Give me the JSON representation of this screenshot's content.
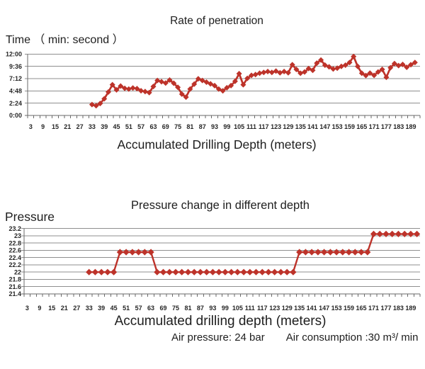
{
  "colors": {
    "series": "#bd332a",
    "grid": "#8f8f8f",
    "axis": "#6a6a6a",
    "text": "#1e1e1e",
    "tick_text": "#262626"
  },
  "footnote": {
    "air_pressure": "Air pressure: 24 bar",
    "air_consumption": "Air consumption :30 m³/ min"
  },
  "chart_data": [
    {
      "type": "line",
      "title": "Rate of penetration",
      "ylabel": "Time （ min: second ）",
      "xlabel": "Accumulated Drilling Depth (meters)",
      "marker": "diamond",
      "legend": "none",
      "grid": "horizontal",
      "x_tick_labels": [
        3,
        9,
        15,
        21,
        27,
        33,
        39,
        45,
        51,
        57,
        63,
        69,
        75,
        81,
        87,
        93,
        99,
        105,
        111,
        117,
        123,
        129,
        135,
        141,
        147,
        153,
        159,
        165,
        171,
        177,
        183,
        189
      ],
      "x_axis_range": [
        3,
        192
      ],
      "ylim_seconds": [
        0,
        720
      ],
      "y_ticks_seconds": [
        0,
        144,
        288,
        432,
        576,
        720
      ],
      "y_tick_labels": [
        "0:00",
        "2:24",
        "4:48",
        "7:12",
        "9:36",
        "12:00"
      ],
      "x_meters": [
        33,
        35,
        37,
        39,
        41,
        43,
        45,
        47,
        49,
        51,
        53,
        55,
        57,
        59,
        61,
        63,
        65,
        67,
        69,
        71,
        73,
        75,
        77,
        79,
        81,
        83,
        85,
        87,
        89,
        91,
        93,
        95,
        97,
        99,
        101,
        103,
        105,
        107,
        109,
        111,
        113,
        115,
        117,
        119,
        121,
        123,
        125,
        127,
        129,
        131,
        133,
        135,
        137,
        139,
        141,
        143,
        145,
        147,
        149,
        151,
        153,
        155,
        157,
        159,
        161,
        163,
        165,
        167,
        169,
        171,
        173,
        175,
        177,
        179,
        181,
        183,
        185,
        187,
        189,
        191
      ],
      "values_seconds": [
        128,
        115,
        140,
        195,
        275,
        360,
        300,
        345,
        318,
        310,
        322,
        315,
        290,
        280,
        267,
        340,
        410,
        395,
        380,
        415,
        378,
        330,
        250,
        215,
        310,
        368,
        430,
        410,
        390,
        370,
        350,
        310,
        289,
        325,
        350,
        400,
        490,
        360,
        435,
        470,
        480,
        495,
        505,
        515,
        505,
        520,
        500,
        515,
        500,
        595,
        540,
        495,
        510,
        550,
        530,
        614,
        650,
        590,
        570,
        545,
        555,
        575,
        590,
        620,
        692,
        575,
        495,
        468,
        497,
        470,
        510,
        540,
        448,
        560,
        608,
        585,
        598,
        565,
        595,
        620
      ]
    },
    {
      "type": "line",
      "title": "Pressure change in different depth",
      "ylabel": "Pressure",
      "xlabel": "Accumulated drilling depth (meters)",
      "marker": "diamond",
      "legend": "none",
      "grid": "horizontal",
      "x_tick_labels": [
        3,
        9,
        15,
        21,
        27,
        33,
        39,
        45,
        51,
        57,
        63,
        69,
        75,
        81,
        87,
        93,
        99,
        105,
        111,
        117,
        123,
        129,
        135,
        141,
        147,
        153,
        159,
        165,
        171,
        177,
        183,
        189
      ],
      "x_axis_range": [
        3,
        192
      ],
      "ylim": [
        21.4,
        23.2
      ],
      "y_ticks": [
        21.4,
        21.6,
        21.8,
        22,
        22.2,
        22.4,
        22.6,
        22.8,
        23,
        23.2
      ],
      "y_tick_labels": [
        "21.4",
        "21.6",
        "21.8",
        "22",
        "22.2",
        "22.4",
        "22.6",
        "22.8",
        "23",
        "23.2"
      ],
      "x_meters": [
        33,
        36,
        39,
        42,
        45,
        48,
        51,
        54,
        57,
        60,
        63,
        66,
        69,
        72,
        75,
        78,
        81,
        84,
        87,
        90,
        93,
        96,
        99,
        102,
        105,
        108,
        111,
        114,
        117,
        120,
        123,
        126,
        129,
        132,
        135,
        138,
        141,
        144,
        147,
        150,
        153,
        156,
        159,
        162,
        165,
        168,
        171,
        174,
        177,
        180,
        183,
        186,
        189,
        192
      ],
      "values": [
        22,
        22,
        22,
        22,
        22,
        22.55,
        22.55,
        22.55,
        22.55,
        22.55,
        22.55,
        22,
        22,
        22,
        22,
        22,
        22,
        22,
        22,
        22,
        22,
        22,
        22,
        22,
        22,
        22,
        22,
        22,
        22,
        22,
        22,
        22,
        22,
        22,
        22.55,
        22.55,
        22.55,
        22.55,
        22.55,
        22.55,
        22.55,
        22.55,
        22.55,
        22.55,
        22.55,
        22.55,
        23.05,
        23.05,
        23.05,
        23.05,
        23.05,
        23.05,
        23.05,
        23.05
      ]
    }
  ]
}
